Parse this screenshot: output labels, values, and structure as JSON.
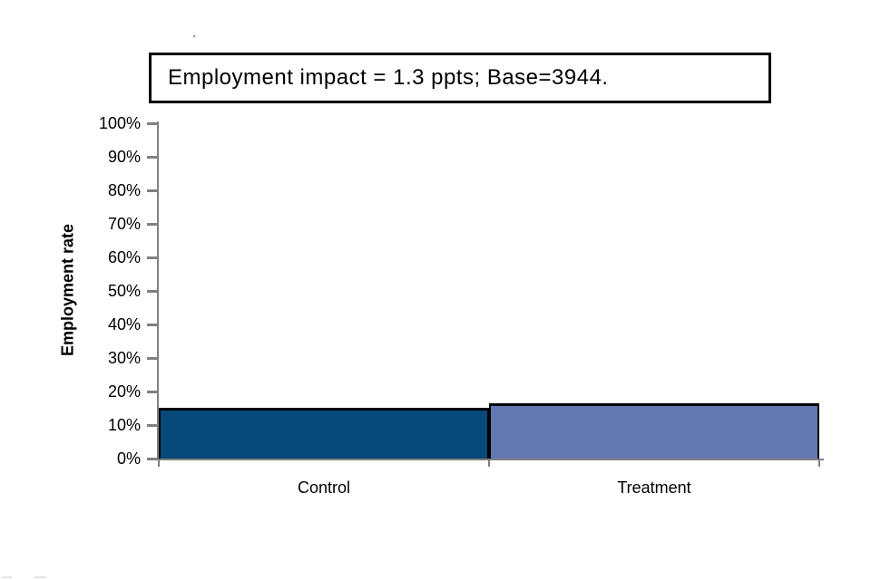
{
  "chart_data": {
    "type": "bar",
    "title": "Employment impact = 1.3 ppts; Base=3944.",
    "employment_impact_ppts": 1.3,
    "base_n": 3944,
    "categories": [
      "Control",
      "Treatment"
    ],
    "values": [
      15.4,
      16.7
    ],
    "ylabel": "Employment rate",
    "xlabel": "",
    "ylim": [
      0,
      100
    ],
    "ytick_step": 10,
    "ytick_labels": [
      "0%",
      "10%",
      "20%",
      "30%",
      "40%",
      "50%",
      "60%",
      "70%",
      "80%",
      "90%",
      "100%"
    ],
    "grid": false,
    "legend": "none",
    "bar_colors": [
      "#07487b",
      "#6377b1"
    ],
    "bar_border_color": "#000000",
    "axis_color": "#808080",
    "text_color": "#000000"
  }
}
